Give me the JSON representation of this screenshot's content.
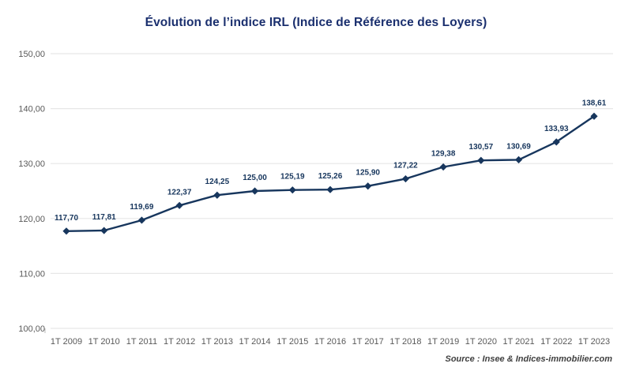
{
  "page": {
    "title": "Évolution de l’indice IRL (Indice de Référence des Loyers)"
  },
  "chart_data": {
    "type": "line",
    "title": "Évolution de l’indice IRL (Indice de Référence des Loyers)",
    "categories": [
      "1T 2009",
      "1T 2010",
      "1T 2011",
      "1T 2012",
      "1T 2013",
      "1T 2014",
      "1T 2015",
      "1T 2016",
      "1T 2017",
      "1T 2018",
      "1T 2019",
      "1T 2020",
      "1T 2021",
      "1T 2022",
      "1T 2023"
    ],
    "values": [
      117.7,
      117.81,
      119.69,
      122.37,
      124.25,
      125.0,
      125.19,
      125.26,
      125.9,
      127.22,
      129.38,
      130.57,
      130.69,
      133.93,
      138.61
    ],
    "value_labels": [
      "117,70",
      "117,81",
      "119,69",
      "122,37",
      "124,25",
      "125,00",
      "125,19",
      "125,26",
      "125,90",
      "127,22",
      "129,38",
      "130,57",
      "130,69",
      "133,93",
      "138,61"
    ],
    "yticks": [
      {
        "label": "100,00",
        "value": 100
      },
      {
        "label": "110,00",
        "value": 110
      },
      {
        "label": "120,00",
        "value": 120
      },
      {
        "label": "130,00",
        "value": 130
      },
      {
        "label": "140,00",
        "value": 140
      },
      {
        "label": "150,00",
        "value": 150
      }
    ],
    "ylim": [
      100,
      150
    ],
    "xlabel": "",
    "ylabel": "",
    "grid": "horizontal",
    "legend": "none",
    "marker": "diamond",
    "line_color": "#17365d",
    "marker_color": "#17365d",
    "data_label_color": "#17365d",
    "axis_text_color": "#595959",
    "gridline_color": "#e7e7e7",
    "background_color": "#ffffff"
  },
  "footer": {
    "source": "Source : Insee & Indices-immobilier.com"
  }
}
